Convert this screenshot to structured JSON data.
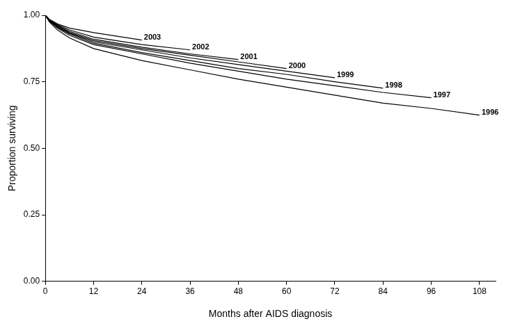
{
  "chart_data": {
    "type": "line",
    "x_label": "Months after AIDS diagnosis",
    "y_label": "Proportion surviving",
    "x": [
      0,
      1,
      3,
      6,
      12,
      24,
      36,
      48,
      60,
      72,
      84,
      96,
      108
    ],
    "series": [
      {
        "name": "1996",
        "color": "#000000",
        "values": [
          1.0,
          0.975,
          0.945,
          0.915,
          0.875,
          0.83,
          0.795,
          0.76,
          0.73,
          0.7,
          0.67,
          0.65,
          0.625
        ]
      },
      {
        "name": "1997",
        "color": "#000000",
        "values": [
          1.0,
          0.978,
          0.952,
          0.925,
          0.89,
          0.855,
          0.82,
          0.79,
          0.76,
          0.735,
          0.71,
          0.69,
          null
        ]
      },
      {
        "name": "1998",
        "color": "#000000",
        "values": [
          1.0,
          0.979,
          0.955,
          0.93,
          0.895,
          0.86,
          0.83,
          0.8,
          0.778,
          0.75,
          0.726,
          null,
          null
        ]
      },
      {
        "name": "1999",
        "color": "#000000",
        "values": [
          1.0,
          0.98,
          0.957,
          0.933,
          0.9,
          0.87,
          0.84,
          0.815,
          0.79,
          0.765,
          null,
          null,
          null
        ]
      },
      {
        "name": "2000",
        "color": "#000000",
        "values": [
          1.0,
          0.981,
          0.96,
          0.936,
          0.905,
          0.875,
          0.85,
          0.825,
          0.8,
          null,
          null,
          null,
          null
        ]
      },
      {
        "name": "2001",
        "color": "#000000",
        "values": [
          1.0,
          0.982,
          0.962,
          0.94,
          0.91,
          0.88,
          0.855,
          0.834,
          null,
          null,
          null,
          null,
          null
        ]
      },
      {
        "name": "2002",
        "color": "#000000",
        "values": [
          1.0,
          0.983,
          0.965,
          0.945,
          0.918,
          0.89,
          0.87,
          null,
          null,
          null,
          null,
          null,
          null
        ]
      },
      {
        "name": "2003",
        "color": "#000000",
        "values": [
          1.0,
          0.985,
          0.968,
          0.952,
          0.935,
          0.907,
          null,
          null,
          null,
          null,
          null,
          null,
          null
        ]
      }
    ],
    "xlim": [
      0,
      112
    ],
    "xticks": [
      0,
      12,
      24,
      36,
      48,
      60,
      72,
      84,
      96,
      108
    ],
    "ylim": [
      0,
      1
    ],
    "yticks": [
      {
        "value": 0,
        "label": "0.00"
      },
      0.25,
      {
        "value": 0.5,
        "label": "0.50"
      },
      0.75,
      {
        "value": 1,
        "label": "1.00"
      }
    ],
    "grid": false,
    "marker": "none",
    "line_style": "solid"
  }
}
